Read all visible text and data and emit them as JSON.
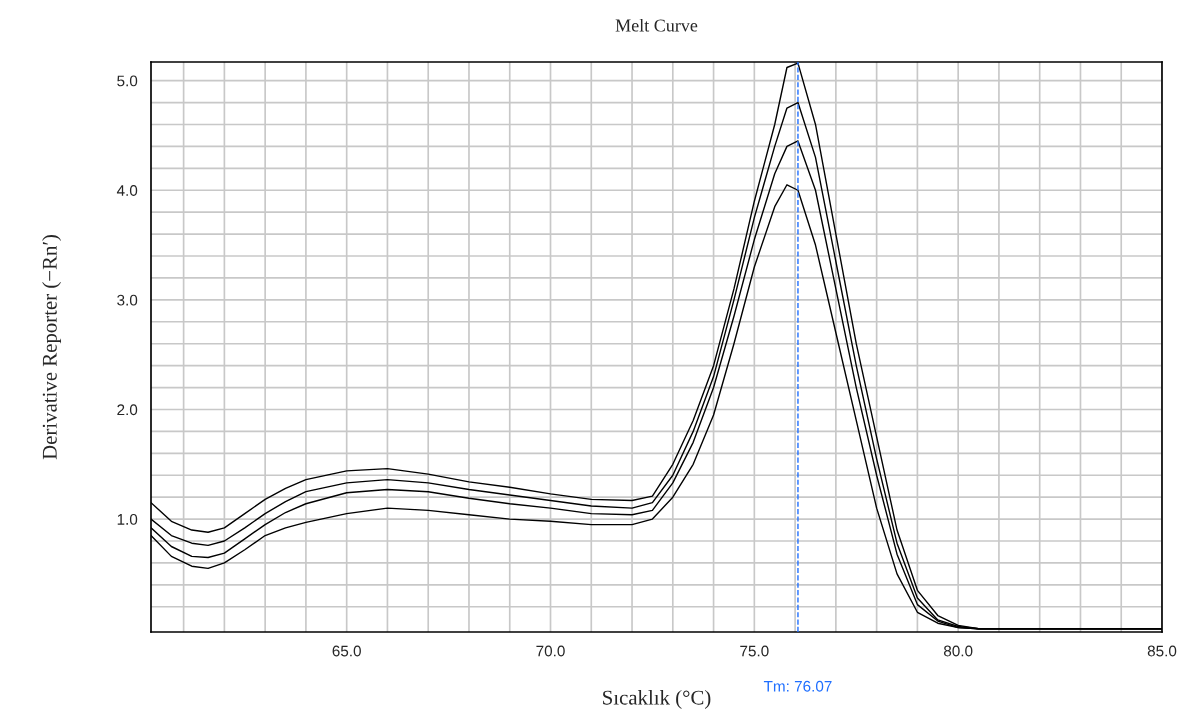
{
  "chart_data": {
    "type": "line",
    "title": "Melt Curve",
    "xlabel": "Sıcaklık (°C)",
    "ylabel": "Derivative Reporter (−Rn′)",
    "x": [
      60.2,
      60.7,
      61.2,
      61.6,
      62,
      62.5,
      63,
      63.5,
      64,
      65,
      66,
      67,
      68,
      69,
      70,
      71,
      72,
      72.5,
      73,
      73.5,
      74,
      74.5,
      75,
      75.5,
      75.8,
      76.07,
      76.5,
      77,
      77.5,
      78,
      78.5,
      79,
      79.5,
      80,
      80.5,
      85
    ],
    "series": [
      {
        "color": "#000000",
        "values": [
          1.15,
          0.98,
          0.9,
          0.88,
          0.92,
          1.05,
          1.18,
          1.28,
          1.36,
          1.44,
          1.46,
          1.41,
          1.34,
          1.29,
          1.23,
          1.18,
          1.17,
          1.21,
          1.5,
          1.9,
          2.4,
          3.1,
          3.9,
          4.6,
          5.12,
          5.16,
          4.6,
          3.6,
          2.6,
          1.75,
          0.9,
          0.35,
          0.12,
          0.03,
          0.0,
          0.0
        ]
      },
      {
        "color": "#000000",
        "values": [
          1.0,
          0.85,
          0.78,
          0.76,
          0.8,
          0.92,
          1.05,
          1.16,
          1.25,
          1.33,
          1.36,
          1.33,
          1.27,
          1.22,
          1.17,
          1.12,
          1.1,
          1.15,
          1.4,
          1.8,
          2.3,
          3.0,
          3.75,
          4.4,
          4.75,
          4.8,
          4.3,
          3.35,
          2.4,
          1.55,
          0.78,
          0.28,
          0.08,
          0.02,
          0.0,
          0.0
        ]
      },
      {
        "color": "#000000",
        "values": [
          0.92,
          0.75,
          0.66,
          0.65,
          0.69,
          0.82,
          0.95,
          1.06,
          1.14,
          1.24,
          1.27,
          1.25,
          1.19,
          1.14,
          1.1,
          1.05,
          1.04,
          1.08,
          1.33,
          1.7,
          2.2,
          2.85,
          3.55,
          4.15,
          4.4,
          4.45,
          4.0,
          3.1,
          2.2,
          1.4,
          0.68,
          0.22,
          0.07,
          0.01,
          0.0,
          0.0
        ]
      },
      {
        "color": "#000000",
        "values": [
          0.85,
          0.66,
          0.57,
          0.55,
          0.6,
          0.72,
          0.85,
          0.92,
          0.97,
          1.05,
          1.1,
          1.08,
          1.04,
          1.0,
          0.98,
          0.95,
          0.95,
          1.0,
          1.2,
          1.5,
          1.95,
          2.6,
          3.3,
          3.85,
          4.05,
          4.0,
          3.5,
          2.7,
          1.9,
          1.1,
          0.5,
          0.15,
          0.05,
          0.01,
          0.0,
          0.0
        ]
      }
    ],
    "xlim": [
      60.2,
      85.0
    ],
    "xticks": [
      {
        "value": 61,
        "label": null
      },
      {
        "value": 62,
        "label": null
      },
      {
        "value": 63,
        "label": null
      },
      {
        "value": 64,
        "label": null
      },
      {
        "value": 65,
        "label": "65.0"
      },
      {
        "value": 66,
        "label": null
      },
      {
        "value": 67,
        "label": null
      },
      {
        "value": 68,
        "label": null
      },
      {
        "value": 69,
        "label": null
      },
      {
        "value": 70,
        "label": "70.0"
      },
      {
        "value": 71,
        "label": null
      },
      {
        "value": 72,
        "label": null
      },
      {
        "value": 73,
        "label": null
      },
      {
        "value": 74,
        "label": null
      },
      {
        "value": 75,
        "label": "75.0"
      },
      {
        "value": 76,
        "label": null
      },
      {
        "value": 77,
        "label": null
      },
      {
        "value": 78,
        "label": null
      },
      {
        "value": 79,
        "label": null
      },
      {
        "value": 80,
        "label": "80.0"
      },
      {
        "value": 81,
        "label": null
      },
      {
        "value": 82,
        "label": null
      },
      {
        "value": 83,
        "label": null
      },
      {
        "value": 84,
        "label": null
      },
      {
        "value": 85,
        "label": "85.0"
      }
    ],
    "ylim": [
      -0.03,
      5.17
    ],
    "yticks": [
      {
        "value": 0.2,
        "label": null
      },
      {
        "value": 0.4,
        "label": null
      },
      {
        "value": 0.6,
        "label": null
      },
      {
        "value": 0.8,
        "label": null
      },
      {
        "value": 1,
        "label": "1.0"
      },
      {
        "value": 1.2,
        "label": null
      },
      {
        "value": 1.4,
        "label": null
      },
      {
        "value": 1.6,
        "label": null
      },
      {
        "value": 1.8,
        "label": null
      },
      {
        "value": 2,
        "label": "2.0"
      },
      {
        "value": 2.2,
        "label": null
      },
      {
        "value": 2.4,
        "label": null
      },
      {
        "value": 2.6,
        "label": null
      },
      {
        "value": 2.8,
        "label": null
      },
      {
        "value": 3,
        "label": "3.0"
      },
      {
        "value": 3.2,
        "label": null
      },
      {
        "value": 3.4,
        "label": null
      },
      {
        "value": 3.6,
        "label": null
      },
      {
        "value": 3.8,
        "label": null
      },
      {
        "value": 4,
        "label": "4.0"
      },
      {
        "value": 4.2,
        "label": null
      },
      {
        "value": 4.4,
        "label": null
      },
      {
        "value": 4.6,
        "label": null
      },
      {
        "value": 4.8,
        "label": null
      },
      {
        "value": 5,
        "label": "5.0"
      }
    ],
    "grid": true,
    "marker": "none",
    "line_style": "solid",
    "ref_lines": [
      {
        "axis": "x",
        "value": 76.07,
        "label": "Tm: 76.07",
        "color": "#1f6fff",
        "line_style": "dashed"
      }
    ]
  }
}
